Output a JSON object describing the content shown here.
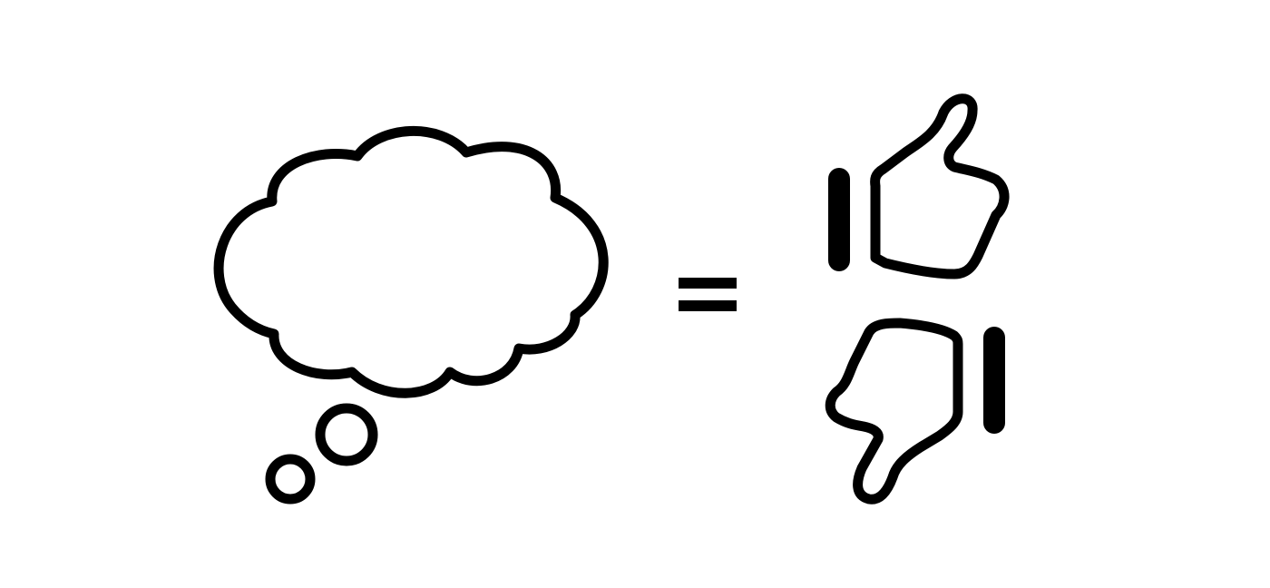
{
  "figure": {
    "elements": [
      {
        "icon": "thought-bubble-icon"
      },
      {
        "icon": "equals-icon"
      },
      {
        "icon": "thumbs-up-icon"
      },
      {
        "icon": "thumbs-down-icon"
      }
    ],
    "colors": {
      "background": "#ffffff",
      "stroke": "#000000"
    }
  }
}
